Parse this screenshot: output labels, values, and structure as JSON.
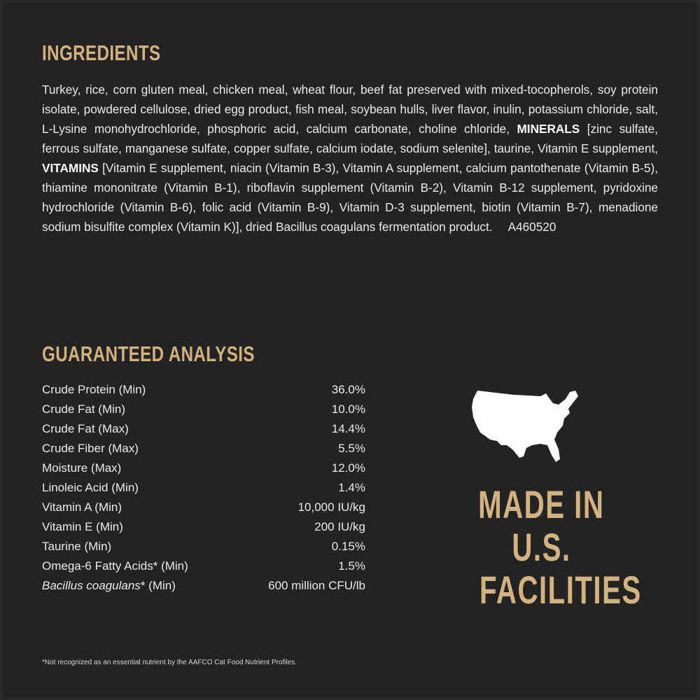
{
  "colors": {
    "background": "#222322",
    "accent": "#d3b27f",
    "text": "#ecebe8"
  },
  "ingredients": {
    "title": "INGREDIENTS",
    "text_1": "Turkey, rice, corn gluten meal, chicken meal, wheat flour, beef fat preserved with mixed-tocopherols, soy protein isolate, powdered cellulose, dried egg product, fish meal, soybean hulls, liver flavor, inulin, potassium chloride, salt, L-Lysine monohydrochloride, phosphoric acid, calcium carbonate, choline chloride, ",
    "minerals_label": "MINERALS",
    "text_2": " [zinc sulfate, ferrous sulfate, manganese sulfate, copper sulfate, calcium iodate, sodium selenite], taurine, Vitamin E supplement, ",
    "vitamins_label": "VITAMINS",
    "text_3": " [Vitamin E supplement, niacin (Vitamin B-3), Vitamin A supplement, calcium pantothenate (Vitamin B-5), thiamine mononitrate (Vitamin B-1), riboflavin supplement (Vitamin B-2), Vitamin B-12 supplement, pyridoxine hydrochloride (Vitamin B-6), folic acid (Vitamin B-9), Vitamin D-3 supplement, biotin (Vitamin B-7), menadione sodium bisulfite complex (Vitamin K)], dried Bacillus coagulans fermentation product.",
    "code": "A460520"
  },
  "analysis": {
    "title": "GUARANTEED ANALYSIS",
    "rows": [
      {
        "label": "Crude Protein (Min)",
        "value": "36.0%"
      },
      {
        "label": "Crude Fat (Min)",
        "value": "10.0%"
      },
      {
        "label": "Crude Fat (Max)",
        "value": "14.4%"
      },
      {
        "label": "Crude Fiber (Max)",
        "value": "5.5%"
      },
      {
        "label": "Moisture (Max)",
        "value": "12.0%"
      },
      {
        "label": "Linoleic Acid (Min)",
        "value": "1.4%"
      },
      {
        "label": "Vitamin A (Min)",
        "value": "10,000 IU/kg"
      },
      {
        "label": "Vitamin E (Min)",
        "value": "200 IU/kg"
      },
      {
        "label": "Taurine (Min)",
        "value": "0.15%"
      },
      {
        "label": "Omega-6 Fatty Acids* (Min)",
        "value": "1.5%"
      }
    ],
    "last_row": {
      "label_italic": "Bacillus coagulans",
      "label_rest": "* (Min)",
      "value": "600 million CFU/lb"
    }
  },
  "badge": {
    "icon": "usa-map-icon",
    "line1": "MADE IN",
    "line2": "U.S.",
    "line3": "FACILITIES"
  },
  "footnote": "*Not recognized as an essential nutrient by the AAFCO Cat Food Nutrient Profiles."
}
